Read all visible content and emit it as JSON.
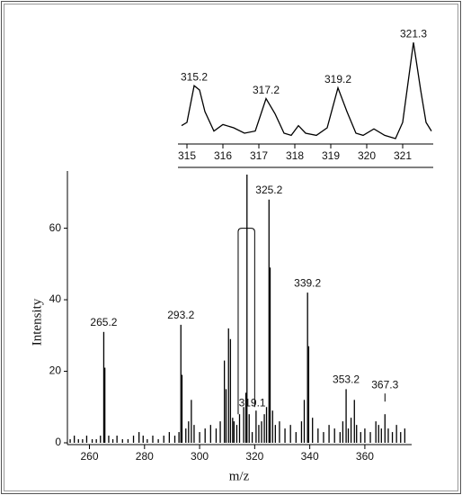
{
  "chart_data": [
    {
      "type": "stick",
      "x_label": "m/z",
      "y_label": "Intensity",
      "color": "#000000",
      "x": [
        253,
        254.5,
        256,
        257.5,
        259,
        261,
        262.5,
        264,
        265.2,
        265.6,
        267,
        268.5,
        270,
        272,
        274,
        276,
        278,
        279.5,
        281,
        283,
        285,
        287,
        289,
        291,
        292.5,
        293.2,
        293.6,
        295,
        296,
        297,
        298,
        300,
        302,
        304,
        306,
        307.5,
        309,
        309.6,
        310.5,
        311.2,
        312,
        312.5,
        313.5,
        314.5,
        316,
        316.8,
        317.2,
        318,
        319.1,
        320.5,
        321.5,
        322.5,
        323.5,
        324.3,
        325.2,
        325.6,
        326.5,
        327.5,
        329,
        331,
        333,
        335,
        337,
        338,
        339.2,
        339.6,
        341,
        343,
        345,
        347,
        349,
        351,
        352,
        353.2,
        354,
        355,
        356.2,
        357,
        358.5,
        360,
        362,
        364,
        365,
        366,
        367.3,
        368.5,
        370,
        371.5,
        373,
        374.5
      ],
      "values": [
        1,
        2,
        1,
        1,
        2,
        1,
        1,
        2,
        31,
        21,
        2,
        1,
        2,
        1,
        1,
        2,
        3,
        2,
        1,
        2,
        1,
        2,
        3,
        2,
        3,
        33,
        19,
        4,
        6,
        12,
        5,
        3,
        4,
        5,
        4,
        6,
        23,
        15,
        32,
        29,
        7,
        6,
        5,
        8,
        10,
        14,
        75,
        8,
        3,
        9,
        5,
        6,
        8,
        10,
        68,
        49,
        9,
        5,
        6,
        4,
        5,
        3,
        6,
        12,
        42,
        27,
        7,
        4,
        3,
        5,
        4,
        3,
        6,
        15,
        4,
        7,
        12,
        5,
        3,
        4,
        3,
        6,
        5,
        4,
        8,
        4,
        3,
        5,
        3,
        4
      ],
      "peak_labels": [
        265.2,
        293.2,
        325.2,
        339.2,
        353.2,
        367.3,
        319.1
      ],
      "xlim": [
        252,
        377
      ],
      "xticks": [
        260,
        280,
        300,
        320,
        340,
        360
      ],
      "ylim": [
        0,
        76
      ],
      "yticks": [
        0,
        20,
        40,
        60
      ]
    },
    {
      "type": "line",
      "color": "#000000",
      "x": [
        314.85,
        315.0,
        315.2,
        315.35,
        315.5,
        315.75,
        316.0,
        316.3,
        316.6,
        316.9,
        317.2,
        317.45,
        317.7,
        317.9,
        318.1,
        318.3,
        318.6,
        318.9,
        319.2,
        319.45,
        319.7,
        319.9,
        320.2,
        320.5,
        320.8,
        321.0,
        321.3,
        321.5,
        321.65,
        321.8
      ],
      "values": [
        17,
        20,
        54,
        50,
        30,
        12,
        18,
        15,
        10,
        12,
        42,
        28,
        10,
        8,
        17,
        10,
        8,
        15,
        52,
        30,
        10,
        8,
        14,
        8,
        5,
        20,
        94,
        50,
        20,
        12
      ],
      "peak_labels": [
        315.2,
        317.2,
        319.2,
        321.3
      ],
      "xlim": [
        314.8,
        321.85
      ],
      "xticks": [
        315,
        316,
        317,
        318,
        319,
        320,
        321
      ],
      "ylim": [
        0,
        100
      ]
    }
  ]
}
